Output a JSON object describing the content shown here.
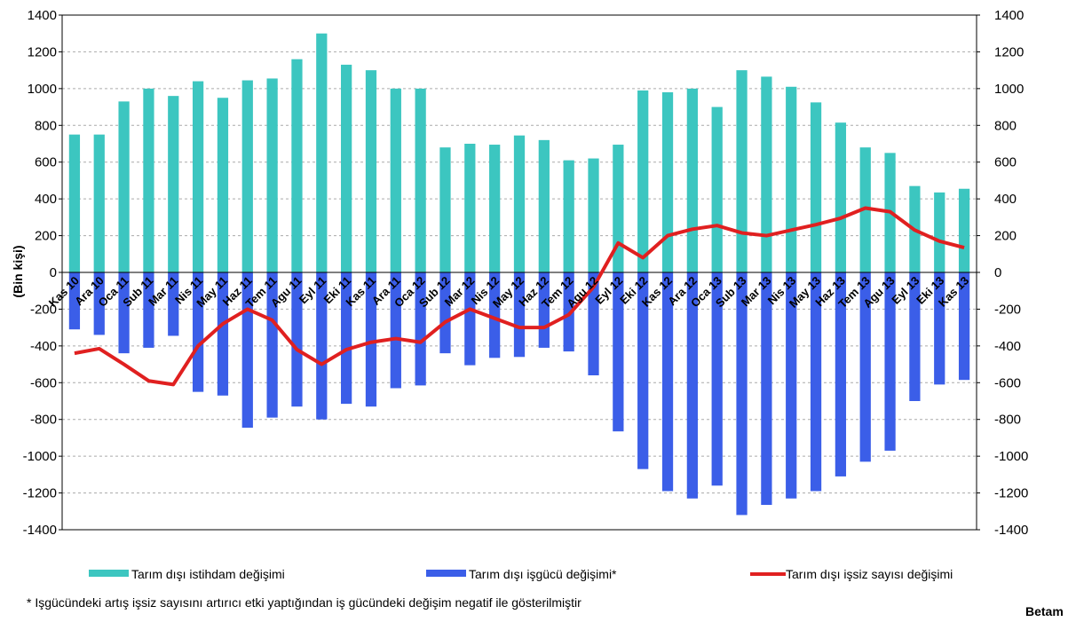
{
  "chart_data": {
    "type": "bar-line",
    "ylabel": "(Bin kişi)",
    "categories": [
      "Kas 10",
      "Ara 10",
      "Oca 11",
      "Sub 11",
      "Mar 11",
      "Nis 11",
      "May 11",
      "Haz 11",
      "Tem 11",
      "Agu 11",
      "Eyl 11",
      "Eki 11",
      "Kas 11",
      "Ara 11",
      "Oca 12",
      "Sub 12",
      "Mar 12",
      "Nis 12",
      "May 12",
      "Haz 12",
      "Tem 12",
      "Agu 12",
      "Eyl 12",
      "Eki 12",
      "Kas 12",
      "Ara 12",
      "Oca 13",
      "Sub 13",
      "Mar 13",
      "Nis 13",
      "May 13",
      "Haz 13",
      "Tem 13",
      "Agu 13",
      "Eyl 13",
      "Eki 13",
      "Kas 13"
    ],
    "series": [
      {
        "name": "Tarım dışı istihdam değişimi",
        "color": "#3cc6c0",
        "values": [
          750,
          750,
          930,
          1000,
          960,
          1040,
          950,
          1045,
          1055,
          1160,
          1300,
          1130,
          1100,
          1000,
          1000,
          680,
          700,
          695,
          745,
          720,
          610,
          620,
          695,
          990,
          980,
          1000,
          900,
          1100,
          1065,
          1010,
          925,
          815,
          680,
          650,
          470,
          435,
          455
        ]
      },
      {
        "name": "Tarım dışı işgücü değişimi*",
        "color": "#3b5ee8",
        "values": [
          -310,
          -340,
          -440,
          -410,
          -345,
          -650,
          -670,
          -845,
          -790,
          -730,
          -800,
          -715,
          -730,
          -630,
          -615,
          -440,
          -505,
          -465,
          -460,
          -410,
          -430,
          -560,
          -865,
          -1070,
          -1190,
          -1230,
          -1160,
          -1320,
          -1265,
          -1230,
          -1190,
          -1110,
          -1030,
          -970,
          -700,
          -610,
          -585
        ]
      },
      {
        "name": "Tarım dışı işsiz sayısı değişimi",
        "color": "#e02020",
        "values": [
          -440,
          -415,
          -500,
          -590,
          -610,
          -400,
          -280,
          -200,
          -260,
          -420,
          -500,
          -420,
          -380,
          -360,
          -380,
          -270,
          -200,
          -250,
          -300,
          -300,
          -230,
          -80,
          160,
          80,
          200,
          235,
          255,
          215,
          200,
          230,
          260,
          295,
          350,
          330,
          230,
          170,
          135
        ]
      }
    ],
    "ylim": [
      -1400,
      1400
    ],
    "yticks": [
      -1400,
      -1200,
      -1000,
      -800,
      -600,
      -400,
      -200,
      0,
      200,
      400,
      600,
      800,
      1000,
      1200,
      1400
    ],
    "grid": true,
    "footnote": "* Işgücündeki artış işsiz sayısını artırıcı  etki yaptığından iş gücündeki değişim negatif ile gösterilmiştir",
    "logo": "Betam"
  }
}
